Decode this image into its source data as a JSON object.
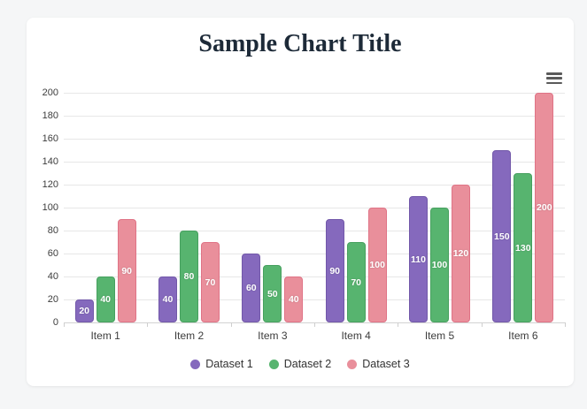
{
  "page": {
    "background_color": "#f5f6f7",
    "card_background_color": "#ffffff"
  },
  "header": {
    "title": "Sample Chart Title",
    "title_color": "#1d2a38"
  },
  "toolbar": {
    "menu_icon": "hamburger-menu-icon"
  },
  "chart_data": {
    "type": "bar",
    "title": "Sample Chart Title",
    "categories": [
      "Item 1",
      "Item 2",
      "Item 3",
      "Item 4",
      "Item 5",
      "Item 6"
    ],
    "series": [
      {
        "name": "Dataset 1",
        "color": "#8569bd",
        "border_color": "#7258a9",
        "values": [
          20,
          40,
          60,
          90,
          110,
          150
        ]
      },
      {
        "name": "Dataset 2",
        "color": "#57b46f",
        "border_color": "#47a05f",
        "values": [
          40,
          80,
          50,
          70,
          100,
          130
        ]
      },
      {
        "name": "Dataset 3",
        "color": "#e98f9b",
        "border_color": "#e07386",
        "values": [
          90,
          70,
          40,
          100,
          120,
          200
        ]
      }
    ],
    "xlabel": "",
    "ylabel": "",
    "ylim": [
      0,
      200
    ],
    "yticks": [
      0,
      20,
      40,
      60,
      80,
      100,
      120,
      140,
      160,
      180,
      200
    ],
    "grid": true,
    "legend_position": "bottom",
    "value_labels": "inside-center-white-bold"
  }
}
